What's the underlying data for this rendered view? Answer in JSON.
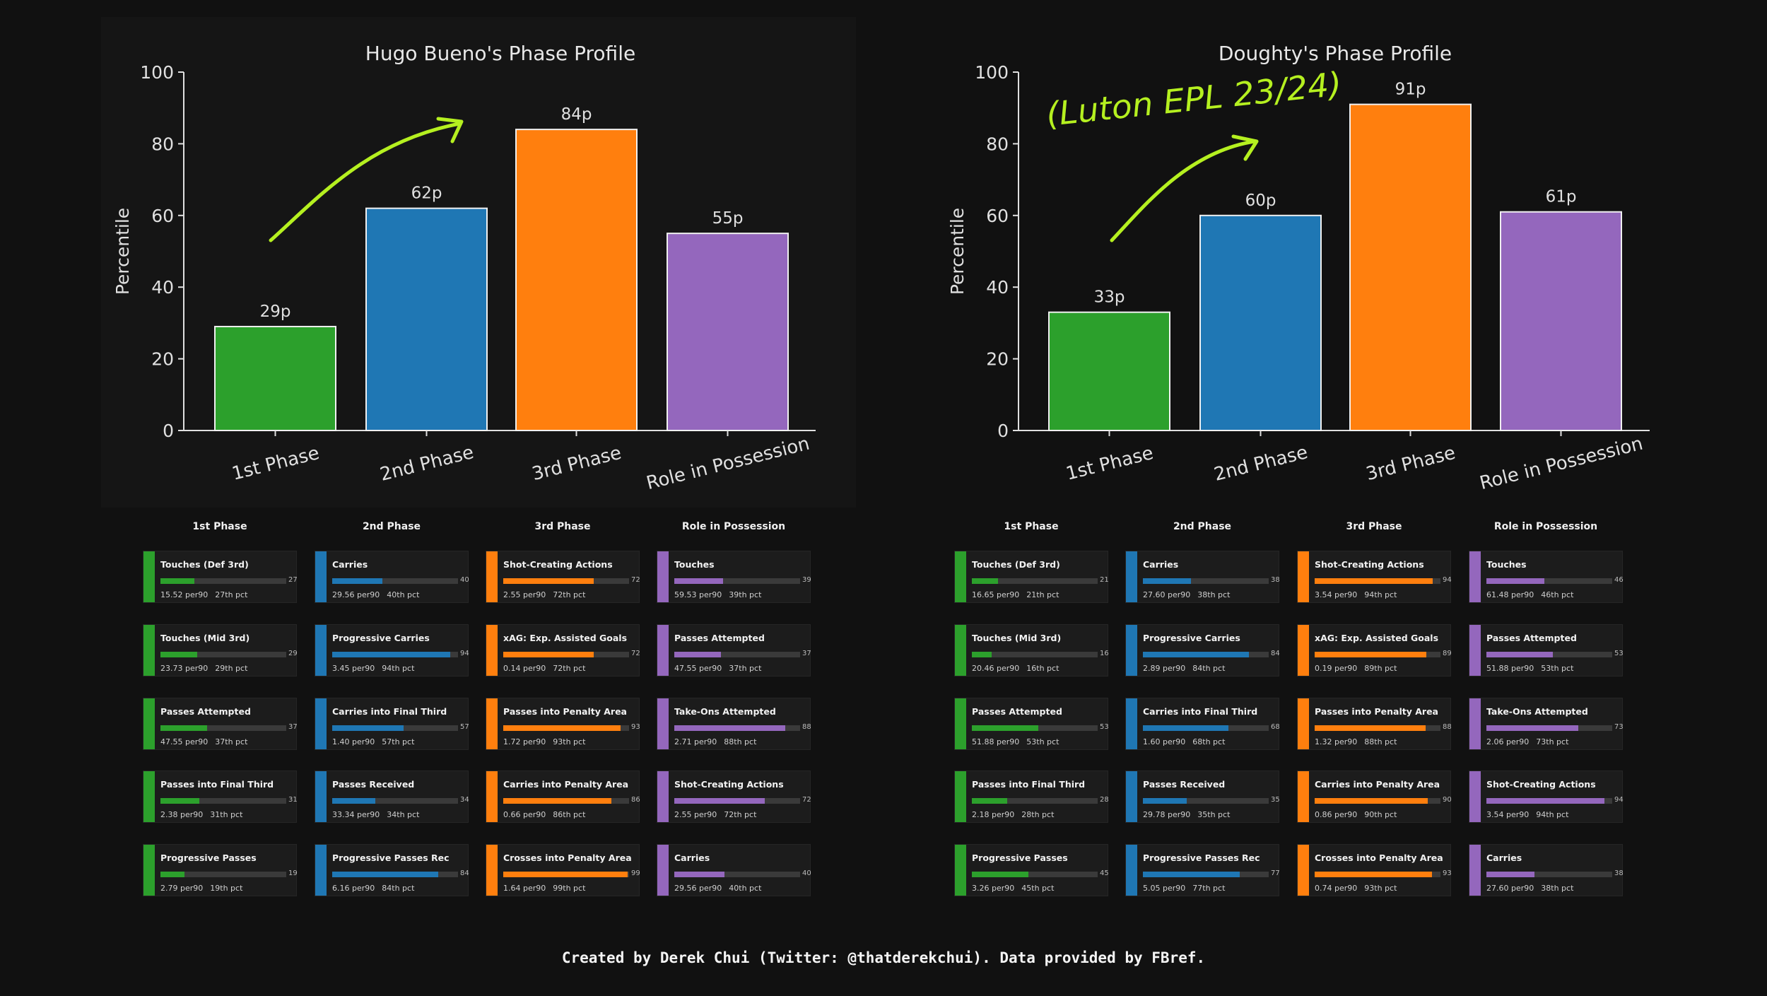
{
  "colors": {
    "background": "#111111",
    "phase_1": "#2ca02c",
    "phase_2": "#1f77b4",
    "phase_3": "#ff7f0e",
    "role": "#9467bd",
    "annotation": "#b5f020"
  },
  "chart_data": [
    {
      "type": "bar",
      "title": "Hugo Bueno's Phase Profile",
      "ylabel": "Percentile",
      "ylim": [
        0,
        100
      ],
      "yticks": [
        "0",
        "20",
        "40",
        "60",
        "80",
        "100"
      ],
      "categories": [
        "1st Phase",
        "2nd Phase",
        "3rd Phase",
        "Role in Possession"
      ],
      "values": [
        29,
        62,
        84,
        55
      ],
      "data_labels": [
        "29p",
        "62p",
        "84p",
        "55p"
      ],
      "grid": false,
      "annotations": [
        {
          "type": "arrow",
          "description": "hand-drawn upward arrow"
        }
      ]
    },
    {
      "type": "bar",
      "title": "Doughty's Phase Profile",
      "ylabel": "Percentile",
      "ylim": [
        0,
        100
      ],
      "yticks": [
        "0",
        "20",
        "40",
        "60",
        "80",
        "100"
      ],
      "categories": [
        "1st Phase",
        "2nd Phase",
        "3rd Phase",
        "Role in Possession"
      ],
      "values": [
        33,
        60,
        91,
        61
      ],
      "data_labels": [
        "33p",
        "60p",
        "91p",
        "61p"
      ],
      "grid": false,
      "annotations": [
        {
          "type": "text",
          "text": "(Luton EPL 23/24)"
        },
        {
          "type": "arrow",
          "description": "hand-drawn upward arrow"
        }
      ]
    }
  ],
  "panels": [
    {
      "columns": [
        {
          "header": "1st Phase",
          "color": "#2ca02c",
          "cards": [
            {
              "title": "Touches (Def 3rd)",
              "pct": 27,
              "per90": "15.52 per90",
              "pct_label": "27th pct"
            },
            {
              "title": "Touches (Mid 3rd)",
              "pct": 29,
              "per90": "23.73 per90",
              "pct_label": "29th pct"
            },
            {
              "title": "Passes Attempted",
              "pct": 37,
              "per90": "47.55 per90",
              "pct_label": "37th pct"
            },
            {
              "title": "Passes into Final Third",
              "pct": 31,
              "per90": "2.38 per90",
              "pct_label": "31th pct"
            },
            {
              "title": "Progressive Passes",
              "pct": 19,
              "per90": "2.79 per90",
              "pct_label": "19th pct"
            }
          ]
        },
        {
          "header": "2nd Phase",
          "color": "#1f77b4",
          "cards": [
            {
              "title": "Carries",
              "pct": 40,
              "per90": "29.56 per90",
              "pct_label": "40th pct"
            },
            {
              "title": "Progressive Carries",
              "pct": 94,
              "per90": "3.45 per90",
              "pct_label": "94th pct"
            },
            {
              "title": "Carries into Final Third",
              "pct": 57,
              "per90": "1.40 per90",
              "pct_label": "57th pct"
            },
            {
              "title": "Passes Received",
              "pct": 34,
              "per90": "33.34 per90",
              "pct_label": "34th pct"
            },
            {
              "title": "Progressive Passes Rec",
              "pct": 84,
              "per90": "6.16 per90",
              "pct_label": "84th pct"
            }
          ]
        },
        {
          "header": "3rd Phase",
          "color": "#ff7f0e",
          "cards": [
            {
              "title": "Shot-Creating Actions",
              "pct": 72,
              "per90": "2.55 per90",
              "pct_label": "72th pct"
            },
            {
              "title": "xAG: Exp. Assisted Goals",
              "pct": 72,
              "per90": "0.14 per90",
              "pct_label": "72th pct"
            },
            {
              "title": "Passes into Penalty Area",
              "pct": 93,
              "per90": "1.72 per90",
              "pct_label": "93th pct"
            },
            {
              "title": "Carries into Penalty Area",
              "pct": 86,
              "per90": "0.66 per90",
              "pct_label": "86th pct"
            },
            {
              "title": "Crosses into Penalty Area",
              "pct": 99,
              "per90": "1.64 per90",
              "pct_label": "99th pct"
            }
          ]
        },
        {
          "header": "Role in Possession",
          "color": "#9467bd",
          "cards": [
            {
              "title": "Touches",
              "pct": 39,
              "per90": "59.53 per90",
              "pct_label": "39th pct"
            },
            {
              "title": "Passes Attempted",
              "pct": 37,
              "per90": "47.55 per90",
              "pct_label": "37th pct"
            },
            {
              "title": "Take-Ons Attempted",
              "pct": 88,
              "per90": "2.71 per90",
              "pct_label": "88th pct"
            },
            {
              "title": "Shot-Creating Actions",
              "pct": 72,
              "per90": "2.55 per90",
              "pct_label": "72th pct"
            },
            {
              "title": "Carries",
              "pct": 40,
              "per90": "29.56 per90",
              "pct_label": "40th pct"
            }
          ]
        }
      ]
    },
    {
      "columns": [
        {
          "header": "1st Phase",
          "color": "#2ca02c",
          "cards": [
            {
              "title": "Touches (Def 3rd)",
              "pct": 21,
              "per90": "16.65 per90",
              "pct_label": "21th pct"
            },
            {
              "title": "Touches (Mid 3rd)",
              "pct": 16,
              "per90": "20.46 per90",
              "pct_label": "16th pct"
            },
            {
              "title": "Passes Attempted",
              "pct": 53,
              "per90": "51.88 per90",
              "pct_label": "53th pct"
            },
            {
              "title": "Passes into Final Third",
              "pct": 28,
              "per90": "2.18 per90",
              "pct_label": "28th pct"
            },
            {
              "title": "Progressive Passes",
              "pct": 45,
              "per90": "3.26 per90",
              "pct_label": "45th pct"
            }
          ]
        },
        {
          "header": "2nd Phase",
          "color": "#1f77b4",
          "cards": [
            {
              "title": "Carries",
              "pct": 38,
              "per90": "27.60 per90",
              "pct_label": "38th pct"
            },
            {
              "title": "Progressive Carries",
              "pct": 84,
              "per90": "2.89 per90",
              "pct_label": "84th pct"
            },
            {
              "title": "Carries into Final Third",
              "pct": 68,
              "per90": "1.60 per90",
              "pct_label": "68th pct"
            },
            {
              "title": "Passes Received",
              "pct": 35,
              "per90": "29.78 per90",
              "pct_label": "35th pct"
            },
            {
              "title": "Progressive Passes Rec",
              "pct": 77,
              "per90": "5.05 per90",
              "pct_label": "77th pct"
            }
          ]
        },
        {
          "header": "3rd Phase",
          "color": "#ff7f0e",
          "cards": [
            {
              "title": "Shot-Creating Actions",
              "pct": 94,
              "per90": "3.54 per90",
              "pct_label": "94th pct"
            },
            {
              "title": "xAG: Exp. Assisted Goals",
              "pct": 89,
              "per90": "0.19 per90",
              "pct_label": "89th pct"
            },
            {
              "title": "Passes into Penalty Area",
              "pct": 88,
              "per90": "1.32 per90",
              "pct_label": "88th pct"
            },
            {
              "title": "Carries into Penalty Area",
              "pct": 90,
              "per90": "0.86 per90",
              "pct_label": "90th pct"
            },
            {
              "title": "Crosses into Penalty Area",
              "pct": 93,
              "per90": "0.74 per90",
              "pct_label": "93th pct"
            }
          ]
        },
        {
          "header": "Role in Possession",
          "color": "#9467bd",
          "cards": [
            {
              "title": "Touches",
              "pct": 46,
              "per90": "61.48 per90",
              "pct_label": "46th pct"
            },
            {
              "title": "Passes Attempted",
              "pct": 53,
              "per90": "51.88 per90",
              "pct_label": "53th pct"
            },
            {
              "title": "Take-Ons Attempted",
              "pct": 73,
              "per90": "2.06 per90",
              "pct_label": "73th pct"
            },
            {
              "title": "Shot-Creating Actions",
              "pct": 94,
              "per90": "3.54 per90",
              "pct_label": "94th pct"
            },
            {
              "title": "Carries",
              "pct": 38,
              "per90": "27.60 per90",
              "pct_label": "38th pct"
            }
          ]
        }
      ]
    }
  ],
  "footer": "Created by Derek Chui (Twitter: @thatderekchui). Data provided by FBref."
}
